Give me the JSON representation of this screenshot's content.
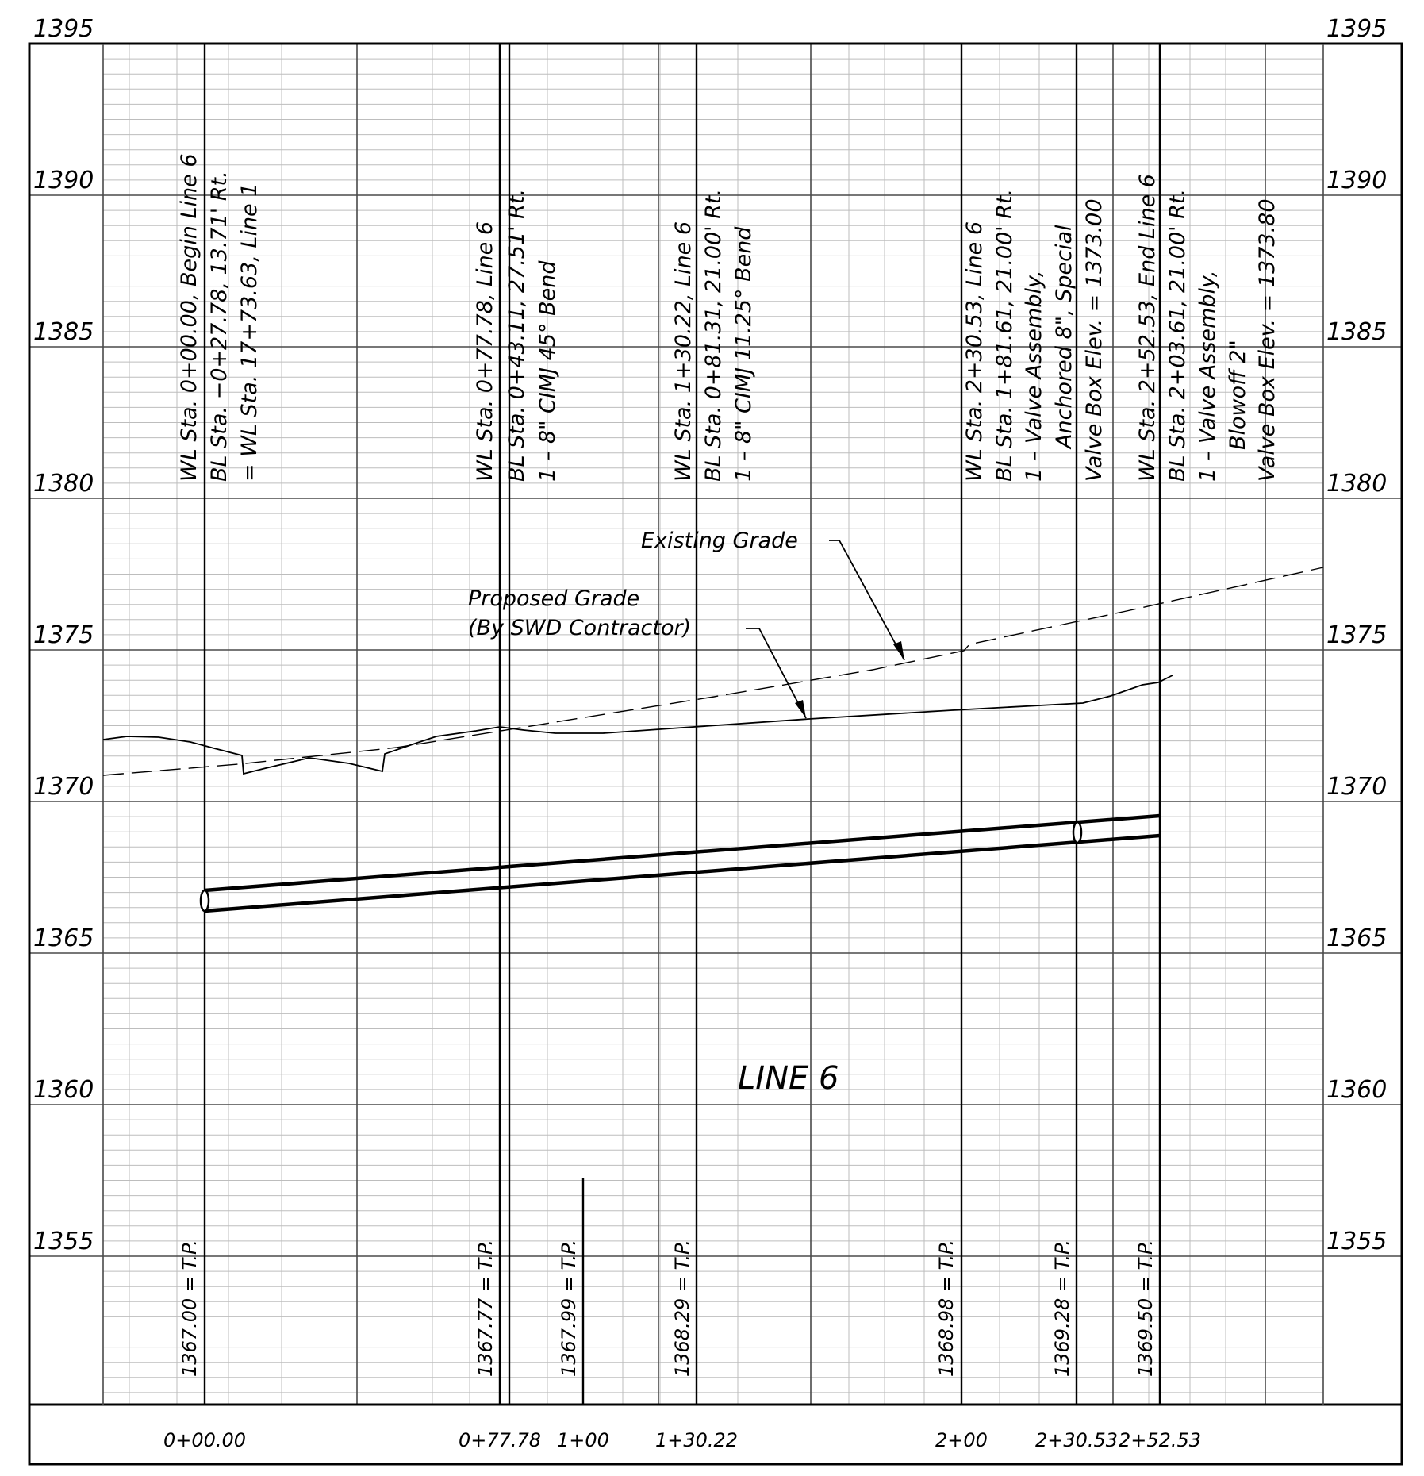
{
  "profile": {
    "title": "LINE 6",
    "elevation_labels": [
      "1395",
      "1390",
      "1385",
      "1380",
      "1375",
      "1370",
      "1365",
      "1360",
      "1355"
    ],
    "station_labels": [
      "0+00.00",
      "0+77.78",
      "1+00",
      "1+30.22",
      "2+00",
      "2+30.53",
      "2+52.53"
    ],
    "grade_labels": {
      "existing": "Existing Grade",
      "proposed_line1": "Proposed Grade",
      "proposed_line2": "(By SWD Contractor)"
    },
    "callouts": [
      {
        "lines": [
          "WL Sta. 0+00.00, Begin Line 6",
          "BL Sta. −0+27.78, 13.71' Rt.",
          "= WL Sta. 17+73.63, Line 1"
        ]
      },
      {
        "lines": [
          "WL Sta. 0+77.78, Line 6",
          "BL Sta. 0+43.11, 27.51' Rt.",
          "1 – 8\" CIMJ 45° Bend"
        ]
      },
      {
        "lines": [
          "WL Sta. 1+30.22, Line 6",
          "BL Sta. 0+81.31, 21.00' Rt.",
          "1 – 8\" CIMJ 11.25° Bend"
        ]
      },
      {
        "lines": [
          "WL Sta. 2+30.53, Line 6",
          "BL Sta. 1+81.61, 21.00' Rt.",
          "1 – Valve Assembly,",
          "Anchored 8\", Special",
          "Valve Box Elev. = 1373.00"
        ]
      },
      {
        "lines": [
          "WL Sta. 2+52.53, End Line 6",
          "BL Sta. 2+03.61, 21.00' Rt.",
          "1 – Valve Assembly,",
          "Blowoff 2\"",
          "Valve Box Elev. = 1373.80"
        ]
      }
    ],
    "tp_labels": [
      "1367.00 = T.P.",
      "1367.77 = T.P.",
      "1367.99 = T.P.",
      "1368.29 = T.P.",
      "1368.98 = T.P.",
      "1369.28 = T.P.",
      "1369.50 = T.P."
    ],
    "colors": {
      "ink": "#000000",
      "minor_grid": "#bdbdbd",
      "major_grid": "#555555"
    }
  }
}
